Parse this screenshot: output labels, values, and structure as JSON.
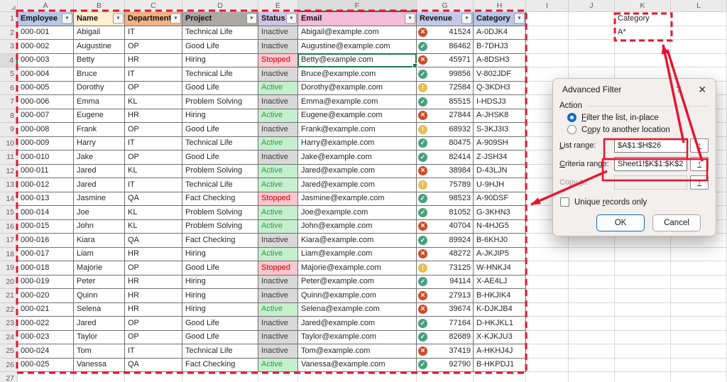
{
  "sheet": {
    "column_letters": [
      "A",
      "B",
      "C",
      "D",
      "E",
      "F",
      "G",
      "H",
      "I",
      "J",
      "K",
      "L"
    ],
    "row_count": 27,
    "active_cell": {
      "column": "F",
      "row": 4
    }
  },
  "table": {
    "dropdown_icon": "▼",
    "columns": [
      {
        "label": "Employee",
        "bg": "#b6c7e7"
      },
      {
        "label": "Name",
        "bg": "#fff0cd"
      },
      {
        "label": "Department",
        "bg": "#f4b183"
      },
      {
        "label": "Project",
        "bg": "#aba7a7"
      },
      {
        "label": "Status",
        "bg": "#cdc4e6"
      },
      {
        "label": "Email",
        "bg": "#f4bcd8"
      },
      {
        "label": "Revenue",
        "bg": "#c4c9e9"
      },
      {
        "label": "Category",
        "bg": "#b6c7e7"
      }
    ],
    "rows": [
      {
        "employee": "000-001",
        "name": "Abigail",
        "department": "IT",
        "project": "Technical Life",
        "status": "Inactive",
        "email": "Abigail@example.com",
        "revenue": 41524,
        "revenue_icon": "x",
        "category": "A-0DJK4"
      },
      {
        "employee": "000-002",
        "name": "Augustine",
        "department": "OP",
        "project": "Good Life",
        "status": "Inactive",
        "email": "Augustine@example.com",
        "revenue": 86462,
        "revenue_icon": "check",
        "category": "B-7DHJ3"
      },
      {
        "employee": "000-003",
        "name": "Betty",
        "department": "HR",
        "project": "Hiring",
        "status": "Stopped",
        "email": "Betty@example.com",
        "revenue": 45971,
        "revenue_icon": "x",
        "category": "A-8DSH3"
      },
      {
        "employee": "000-004",
        "name": "Bruce",
        "department": "IT",
        "project": "Technical Life",
        "status": "Inactive",
        "email": "Bruce@example.com",
        "revenue": 99856,
        "revenue_icon": "check",
        "category": "V-802JDF"
      },
      {
        "employee": "000-005",
        "name": "Dorothy",
        "department": "OP",
        "project": "Good Life",
        "status": "Active",
        "email": "Dorothy@example.com",
        "revenue": 72584,
        "revenue_icon": "warn",
        "category": "Q-3KDH3"
      },
      {
        "employee": "000-006",
        "name": "Emma",
        "department": "KL",
        "project": "Problem Solving",
        "status": "Inactive",
        "email": "Emma@example.com",
        "revenue": 85515,
        "revenue_icon": "check",
        "category": "I-HDSJ3"
      },
      {
        "employee": "000-007",
        "name": "Eugene",
        "department": "HR",
        "project": "Hiring",
        "status": "Active",
        "email": "Eugene@example.com",
        "revenue": 27844,
        "revenue_icon": "x",
        "category": "A-JHSK8"
      },
      {
        "employee": "000-008",
        "name": "Frank",
        "department": "OP",
        "project": "Good Life",
        "status": "Inactive",
        "email": "Frank@example.com",
        "revenue": 68932,
        "revenue_icon": "warn",
        "category": "S-3KJ3I3"
      },
      {
        "employee": "000-009",
        "name": "Harry",
        "department": "IT",
        "project": "Technical Life",
        "status": "Active",
        "email": "Harry@example.com",
        "revenue": 80475,
        "revenue_icon": "check",
        "category": "A-909SH"
      },
      {
        "employee": "000-010",
        "name": "Jake",
        "department": "OP",
        "project": "Good Life",
        "status": "Inactive",
        "email": "Jake@example.com",
        "revenue": 82414,
        "revenue_icon": "check",
        "category": "Z-JSH34"
      },
      {
        "employee": "000-011",
        "name": "Jared",
        "department": "KL",
        "project": "Problem Solving",
        "status": "Active",
        "email": "Jared@example.com",
        "revenue": 38984,
        "revenue_icon": "x",
        "category": "D-43LJN"
      },
      {
        "employee": "000-012",
        "name": "Jared",
        "department": "IT",
        "project": "Technical Life",
        "status": "Active",
        "email": "Jared@example.com",
        "revenue": 75789,
        "revenue_icon": "warn",
        "category": "U-9HJH"
      },
      {
        "employee": "000-013",
        "name": "Jasmine",
        "department": "QA",
        "project": "Fact Checking",
        "status": "Stopped",
        "email": "Jasmine@example.com",
        "revenue": 98523,
        "revenue_icon": "check",
        "category": "A-90DSF"
      },
      {
        "employee": "000-014",
        "name": "Joe",
        "department": "KL",
        "project": "Problem Solving",
        "status": "Active",
        "email": "Joe@example.com",
        "revenue": 81052,
        "revenue_icon": "check",
        "category": "G-3KHN3"
      },
      {
        "employee": "000-015",
        "name": "John",
        "department": "KL",
        "project": "Problem Solving",
        "status": "Active",
        "email": "John@example.com",
        "revenue": 40704,
        "revenue_icon": "x",
        "category": "N-4HJG5"
      },
      {
        "employee": "000-016",
        "name": "Kiara",
        "department": "QA",
        "project": "Fact Checking",
        "status": "Inactive",
        "email": "Kiara@example.com",
        "revenue": 89924,
        "revenue_icon": "check",
        "category": "B-6KHJ0"
      },
      {
        "employee": "000-017",
        "name": "Liam",
        "department": "HR",
        "project": "Hiring",
        "status": "Active",
        "email": "Liam@example.com",
        "revenue": 48272,
        "revenue_icon": "x",
        "category": "A-JKJIP5"
      },
      {
        "employee": "000-018",
        "name": "Majorie",
        "department": "OP",
        "project": "Good Life",
        "status": "Stopped",
        "email": "Majorie@example.com",
        "revenue": 73125,
        "revenue_icon": "warn",
        "category": "W-HNKJ4"
      },
      {
        "employee": "000-019",
        "name": "Peter",
        "department": "HR",
        "project": "Hiring",
        "status": "Inactive",
        "email": "Peter@example.com",
        "revenue": 94114,
        "revenue_icon": "check",
        "category": "X-AE4LJ"
      },
      {
        "employee": "000-020",
        "name": "Quinn",
        "department": "HR",
        "project": "Hiring",
        "status": "Inactive",
        "email": "Quinn@example.com",
        "revenue": 27913,
        "revenue_icon": "x",
        "category": "B-HKJIK4"
      },
      {
        "employee": "000-021",
        "name": "Selena",
        "department": "HR",
        "project": "Hiring",
        "status": "Active",
        "email": "Selena@example.com",
        "revenue": 39674,
        "revenue_icon": "x",
        "category": "K-DJKJB4"
      },
      {
        "employee": "000-022",
        "name": "Jared",
        "department": "OP",
        "project": "Good Life",
        "status": "Inactive",
        "email": "Jared@example.com",
        "revenue": 77164,
        "revenue_icon": "check",
        "category": "D-HKJKL1"
      },
      {
        "employee": "000-023",
        "name": "Taylor",
        "department": "OP",
        "project": "Good Life",
        "status": "Inactive",
        "email": "Taylor@example.com",
        "revenue": 82689,
        "revenue_icon": "check",
        "category": "X-KJKJU3"
      },
      {
        "employee": "000-024",
        "name": "Tom",
        "department": "IT",
        "project": "Technical Life",
        "status": "Inactive",
        "email": "Tom@example.com",
        "revenue": 37419,
        "revenue_icon": "x",
        "category": "A-HKHJ4J"
      },
      {
        "employee": "000-025",
        "name": "Vanessa",
        "department": "QA",
        "project": "Fact Checking",
        "status": "Active",
        "email": "Vanessa@example.com",
        "revenue": 92790,
        "revenue_icon": "check",
        "category": "B-HKPDJ1"
      }
    ]
  },
  "status_styles": {
    "Active": {
      "bg": "#c6efce",
      "fg": "#2e9c4b"
    },
    "Inactive": {
      "bg": "#d9d9d9",
      "fg": "#3a3a3a"
    },
    "Stopped": {
      "bg": "#ffc7ce",
      "fg": "#c00000"
    }
  },
  "icon_colors": {
    "check": "#47a07e",
    "x": "#cf4a28",
    "warn": "#e8bd52"
  },
  "icons": {
    "check": "✓",
    "x": "×",
    "warn": "!"
  },
  "criteria_cells": {
    "header": "Category",
    "value": "A*"
  },
  "dialog": {
    "title": "Advanced Filter",
    "help_icon": "?",
    "close_icon": "✕",
    "collapse_icon": "↑",
    "action": {
      "label": "Action"
    },
    "radios": [
      {
        "key": "filter-in-place",
        "label": "Filter the list, in-place",
        "mnemonic": "F",
        "selected": true
      },
      {
        "key": "copy-to-location",
        "label": "Copy to another location",
        "mnemonic": "o",
        "selected": false
      }
    ],
    "fields": [
      {
        "key": "list-range",
        "label": "List range:",
        "mnemonic": "L",
        "value": "$A$1:$H$26",
        "disabled": false
      },
      {
        "key": "criteria-range",
        "label": "Criteria range:",
        "mnemonic": "C",
        "value": "Sheet1!$K$1:$K$2",
        "disabled": false
      },
      {
        "key": "copy-to",
        "label": "Copy to:",
        "mnemonic": "t",
        "value": "",
        "disabled": true
      }
    ],
    "unique_checkbox": {
      "label": "Unique records only",
      "mnemonic": "r",
      "checked": false
    },
    "ok_label": "OK",
    "cancel_label": "Cancel"
  },
  "annotation_color": "#e8132f"
}
